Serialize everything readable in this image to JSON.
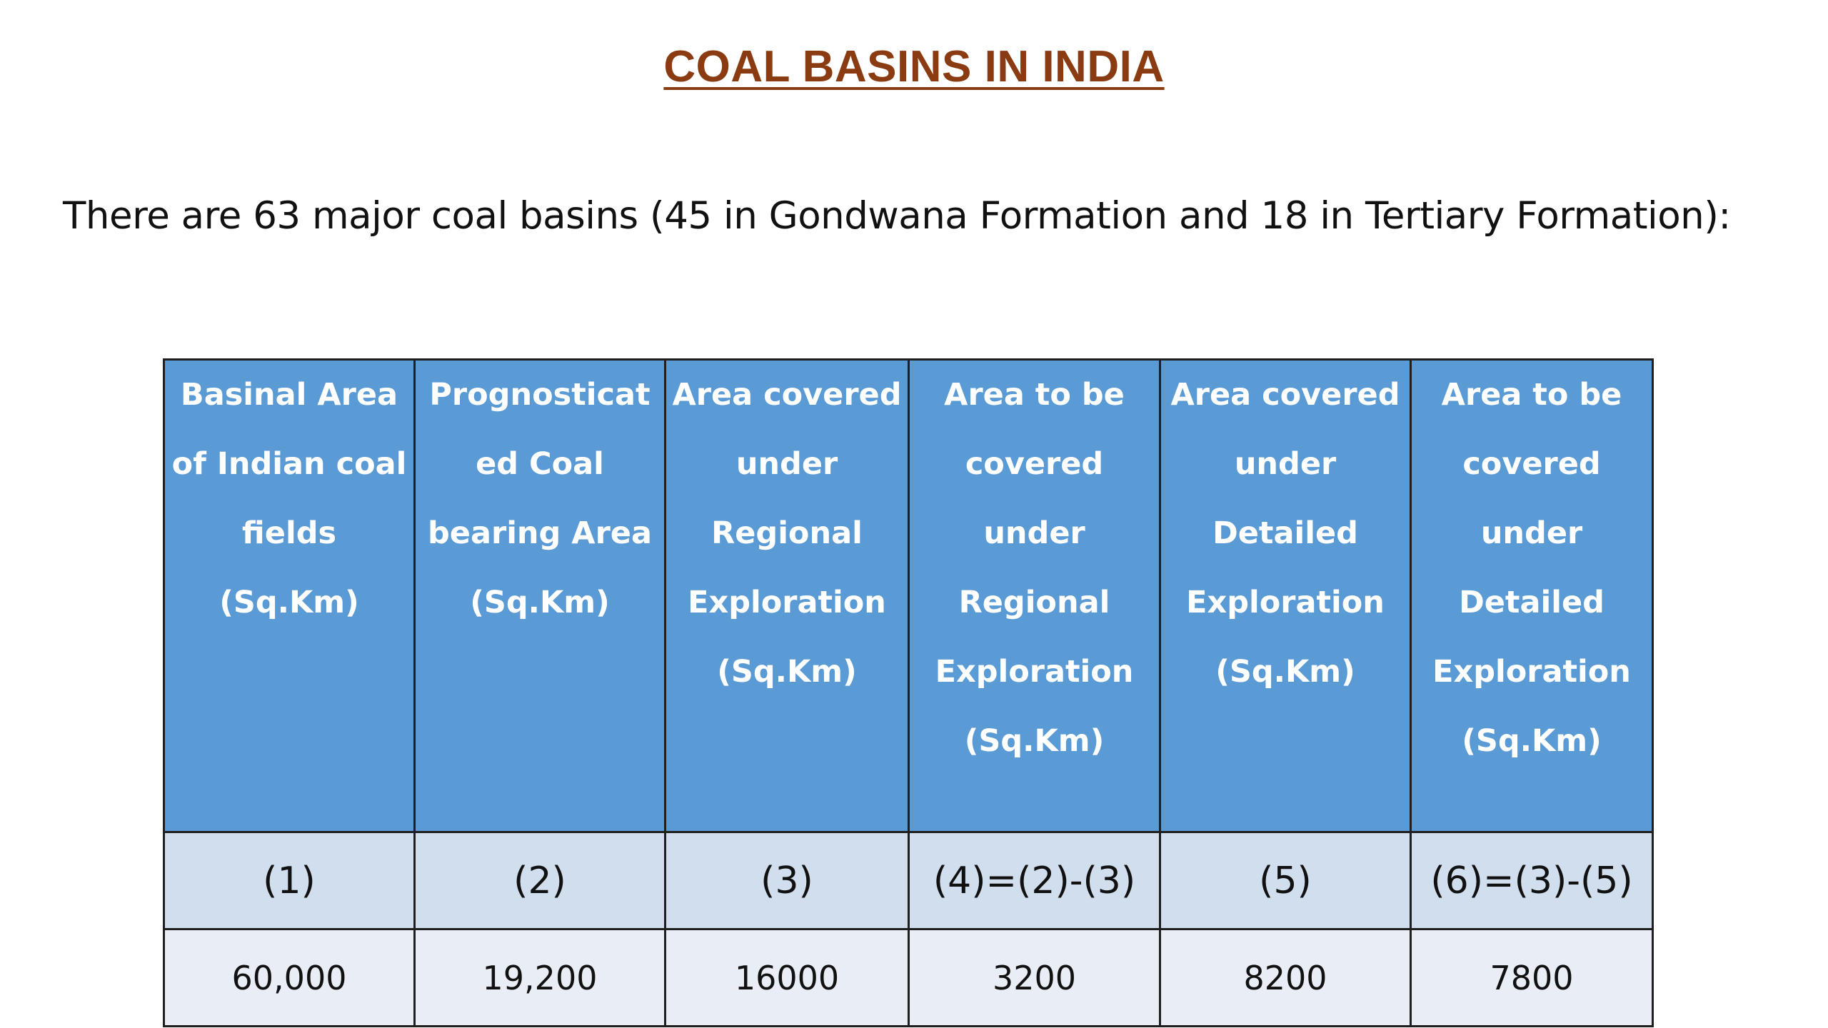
{
  "title": "COAL BASINS IN INDIA",
  "intro": "There are 63 major coal basins (45 in Gondwana Formation and 18 in Tertiary Formation):",
  "table": {
    "headers": [
      [
        "Basinal Area",
        "of Indian coal",
        "fields",
        "(Sq.Km)"
      ],
      [
        "Prognosticat",
        "ed Coal",
        "bearing Area",
        "(Sq.Km)"
      ],
      [
        "Area covered",
        "under",
        "Regional",
        "Exploration",
        "(Sq.Km)"
      ],
      [
        "Area to be",
        "covered",
        "under",
        "Regional",
        "Exploration",
        "(Sq.Km)"
      ],
      [
        "Area covered",
        "under",
        "Detailed",
        "Exploration",
        "(Sq.Km)"
      ],
      [
        "Area to be",
        "covered",
        "under",
        "Detailed",
        "Exploration",
        "(Sq.Km)"
      ]
    ],
    "formula_row": [
      "(1)",
      "(2)",
      "(3)",
      "(4)=(2)-(3)",
      "(5)",
      "(6)=(3)-(5)"
    ],
    "value_row": [
      "60,000",
      "19,200",
      "16000",
      "3200",
      "8200",
      "7800"
    ]
  },
  "colors": {
    "title": "#8a3b12",
    "header_bg": "#5b9bd5",
    "formula_row_bg": "#d0deee",
    "value_row_bg": "#e9edf6"
  }
}
